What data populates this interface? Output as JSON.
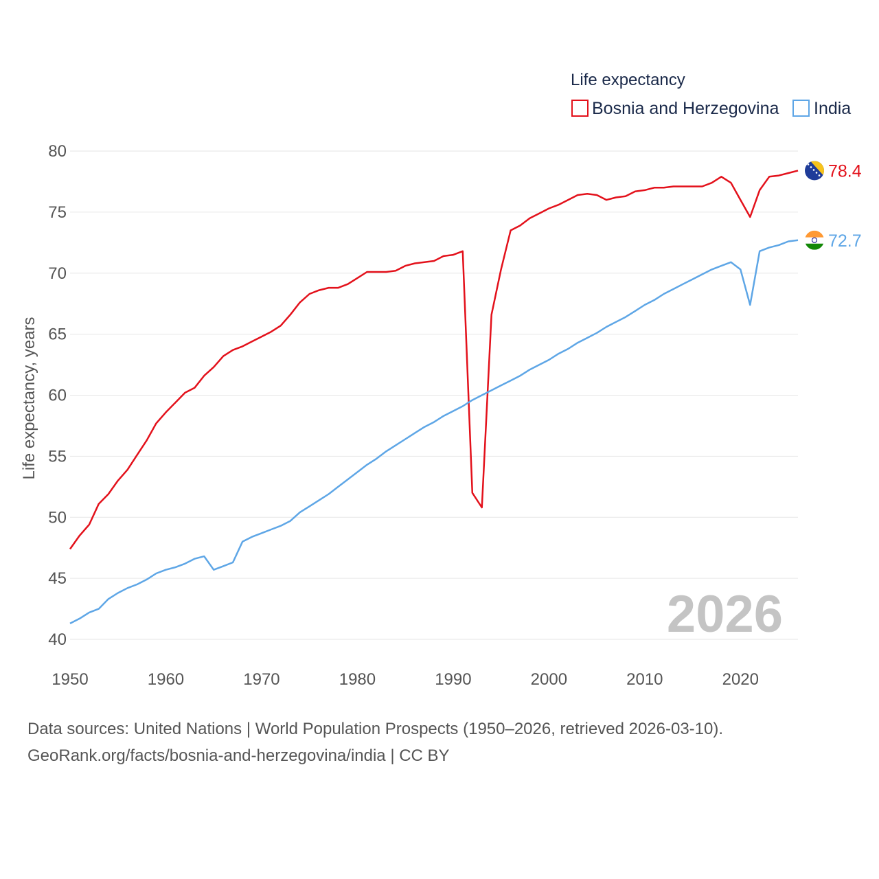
{
  "chart_data": {
    "type": "line",
    "legend_title": "Life expectancy",
    "ylabel": "Life expectancy, years",
    "xlabel": "",
    "xlim": [
      1950,
      2026
    ],
    "ylim": [
      40,
      80
    ],
    "x_ticks": [
      1950,
      1960,
      1970,
      1980,
      1990,
      2000,
      2010,
      2020
    ],
    "y_ticks": [
      40,
      45,
      50,
      55,
      60,
      65,
      70,
      75,
      80
    ],
    "x_tick_labels": [
      "1950",
      "1960",
      "1970",
      "1980",
      "1990",
      "2000",
      "2010",
      "2020"
    ],
    "y_tick_labels": [
      "40",
      "45",
      "50",
      "55",
      "60",
      "65",
      "70",
      "75",
      "80"
    ],
    "grid": true,
    "legend_position": "top-right",
    "year_watermark": "2026",
    "x": [
      1950,
      1951,
      1952,
      1953,
      1954,
      1955,
      1956,
      1957,
      1958,
      1959,
      1960,
      1961,
      1962,
      1963,
      1964,
      1965,
      1966,
      1967,
      1968,
      1969,
      1970,
      1971,
      1972,
      1973,
      1974,
      1975,
      1976,
      1977,
      1978,
      1979,
      1980,
      1981,
      1982,
      1983,
      1984,
      1985,
      1986,
      1987,
      1988,
      1989,
      1990,
      1991,
      1992,
      1993,
      1994,
      1995,
      1996,
      1997,
      1998,
      1999,
      2000,
      2001,
      2002,
      2003,
      2004,
      2005,
      2006,
      2007,
      2008,
      2009,
      2010,
      2011,
      2012,
      2013,
      2014,
      2015,
      2016,
      2017,
      2018,
      2019,
      2020,
      2021,
      2022,
      2023,
      2024,
      2025,
      2026
    ],
    "series": [
      {
        "name": "Bosnia and Herzegovina",
        "color": "#e3111b",
        "end_label": "78.4",
        "flag": "bosnia-flag",
        "values": [
          47.4,
          48.5,
          49.4,
          51.1,
          51.9,
          53.0,
          53.9,
          55.1,
          56.3,
          57.7,
          58.6,
          59.4,
          60.2,
          60.6,
          61.6,
          62.3,
          63.2,
          63.7,
          64.0,
          64.4,
          64.8,
          65.2,
          65.7,
          66.6,
          67.6,
          68.3,
          68.6,
          68.8,
          68.8,
          69.1,
          69.6,
          70.1,
          70.1,
          70.1,
          70.2,
          70.6,
          70.8,
          70.9,
          71.0,
          71.4,
          71.5,
          71.8,
          52.0,
          50.8,
          66.6,
          70.3,
          73.5,
          73.9,
          74.5,
          74.9,
          75.3,
          75.6,
          76.0,
          76.4,
          76.5,
          76.4,
          76.0,
          76.2,
          76.3,
          76.7,
          76.8,
          77.0,
          77.0,
          77.1,
          77.1,
          77.1,
          77.1,
          77.4,
          77.9,
          77.4,
          76.0,
          74.6,
          76.8,
          77.9,
          78.0,
          78.2,
          78.4
        ]
      },
      {
        "name": "India",
        "color": "#5ea6e6",
        "end_label": "72.7",
        "flag": "india-flag",
        "values": [
          41.3,
          41.7,
          42.2,
          42.5,
          43.3,
          43.8,
          44.2,
          44.5,
          44.9,
          45.4,
          45.7,
          45.9,
          46.2,
          46.6,
          46.8,
          45.7,
          46.0,
          46.3,
          48.0,
          48.4,
          48.7,
          49.0,
          49.3,
          49.7,
          50.4,
          50.9,
          51.4,
          51.9,
          52.5,
          53.1,
          53.7,
          54.3,
          54.8,
          55.4,
          55.9,
          56.4,
          56.9,
          57.4,
          57.8,
          58.3,
          58.7,
          59.1,
          59.6,
          60.0,
          60.4,
          60.8,
          61.2,
          61.6,
          62.1,
          62.5,
          62.9,
          63.4,
          63.8,
          64.3,
          64.7,
          65.1,
          65.6,
          66.0,
          66.4,
          66.9,
          67.4,
          67.8,
          68.3,
          68.7,
          69.1,
          69.5,
          69.9,
          70.3,
          70.6,
          70.9,
          70.3,
          67.4,
          71.8,
          72.1,
          72.3,
          72.6,
          72.7
        ]
      }
    ]
  },
  "source": {
    "line1": "Data sources: United Nations | World Population Prospects (1950–2026, retrieved 2026-03-10).",
    "line2": "GeoRank.org/facts/bosnia-and-herzegovina/india | CC BY"
  }
}
